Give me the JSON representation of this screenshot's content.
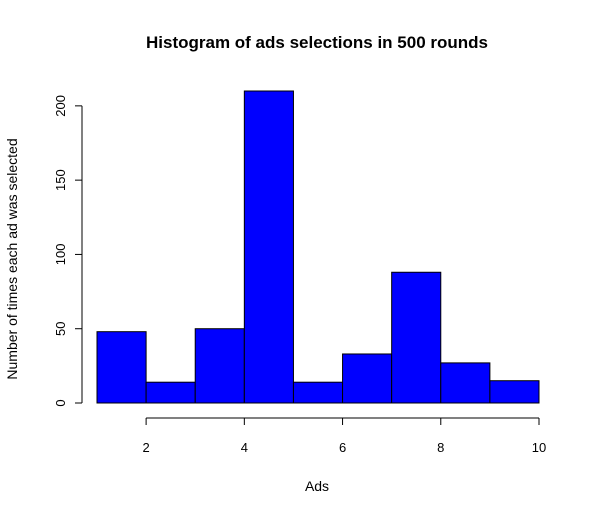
{
  "chart_data": {
    "type": "bar",
    "title": "Histogram of ads selections in 500 rounds",
    "xlabel": "Ads",
    "ylabel": "Number of times each ad was selected",
    "bins": [
      {
        "start": 1,
        "end": 2,
        "value": 48
      },
      {
        "start": 2,
        "end": 3,
        "value": 14
      },
      {
        "start": 3,
        "end": 4,
        "value": 50
      },
      {
        "start": 4,
        "end": 5,
        "value": 210
      },
      {
        "start": 5,
        "end": 6,
        "value": 14
      },
      {
        "start": 6,
        "end": 7,
        "value": 33
      },
      {
        "start": 7,
        "end": 8,
        "value": 88
      },
      {
        "start": 8,
        "end": 9,
        "value": 27
      },
      {
        "start": 9,
        "end": 10,
        "value": 15
      }
    ],
    "xlim": [
      1,
      10
    ],
    "ylim": [
      0,
      210
    ],
    "xticks": [
      2,
      4,
      6,
      8,
      10
    ],
    "yticks": [
      0,
      50,
      100,
      150,
      200
    ],
    "xtick_labels": [
      "2",
      "4",
      "6",
      "8",
      "10"
    ],
    "ytick_labels": [
      "0",
      "50",
      "100",
      "150",
      "200"
    ],
    "bar_color": "#0000ff",
    "bar_edge_color": "#000000",
    "grid": false,
    "legend": "none"
  }
}
